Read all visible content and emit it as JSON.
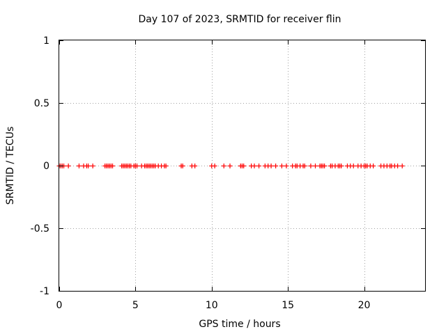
{
  "chart_data": {
    "type": "scatter",
    "title": "Day 107 of 2023, SRMTID for receiver flin",
    "xlabel": "GPS time / hours",
    "ylabel": "SRMTID / TECUs",
    "xlim": [
      0,
      24
    ],
    "ylim": [
      -1,
      1
    ],
    "x_ticks": [
      0,
      5,
      10,
      15,
      20
    ],
    "x_tick_labels": [
      "0",
      "5",
      "10",
      "15",
      "20"
    ],
    "y_ticks": [
      -1,
      -0.5,
      0,
      0.5,
      1
    ],
    "y_tick_labels": [
      "-1",
      "-0.5",
      "0",
      "0.5",
      "1"
    ],
    "grid": true,
    "marker": "+",
    "color": "#ff0000",
    "series": [
      {
        "name": "flin",
        "x": [
          0.0,
          0.1,
          0.2,
          0.3,
          0.6,
          1.3,
          1.6,
          1.8,
          1.9,
          2.2,
          3.0,
          3.1,
          3.2,
          3.3,
          3.4,
          3.5,
          4.1,
          4.2,
          4.3,
          4.4,
          4.5,
          4.6,
          4.7,
          4.9,
          5.0,
          5.1,
          5.4,
          5.6,
          5.7,
          5.8,
          5.9,
          6.0,
          6.1,
          6.2,
          6.3,
          6.5,
          6.7,
          6.9,
          7.0,
          8.0,
          8.1,
          8.7,
          8.9,
          10.0,
          10.2,
          10.8,
          11.2,
          11.9,
          12.0,
          12.1,
          12.6,
          12.8,
          13.1,
          13.5,
          13.7,
          13.9,
          14.2,
          14.6,
          14.9,
          15.3,
          15.5,
          15.6,
          15.8,
          16.0,
          16.1,
          16.5,
          16.8,
          17.1,
          17.2,
          17.3,
          17.4,
          17.8,
          17.9,
          18.1,
          18.3,
          18.4,
          18.5,
          18.9,
          19.1,
          19.3,
          19.6,
          19.8,
          20.0,
          20.1,
          20.2,
          20.4,
          20.6,
          21.1,
          21.3,
          21.5,
          21.7,
          21.8,
          22.0,
          22.2,
          22.5
        ],
        "y": [
          0,
          0,
          0,
          0,
          0,
          0,
          0,
          0,
          0,
          0,
          0,
          0,
          0,
          0,
          0,
          0,
          0,
          0,
          0,
          0,
          0,
          0,
          0,
          0,
          0,
          0,
          0,
          0,
          0,
          0,
          0,
          0,
          0,
          0,
          0,
          0,
          0,
          0,
          0,
          0,
          0,
          0,
          0,
          0,
          0,
          0,
          0,
          0,
          0,
          0,
          0,
          0,
          0,
          0,
          0,
          0,
          0,
          0,
          0,
          0,
          0,
          0,
          0,
          0,
          0,
          0,
          0,
          0,
          0,
          0,
          0,
          0,
          0,
          0,
          0,
          0,
          0,
          0,
          0,
          0,
          0,
          0,
          0,
          0,
          0,
          0,
          0,
          0,
          0,
          0,
          0,
          0,
          0,
          0,
          0
        ]
      }
    ]
  }
}
